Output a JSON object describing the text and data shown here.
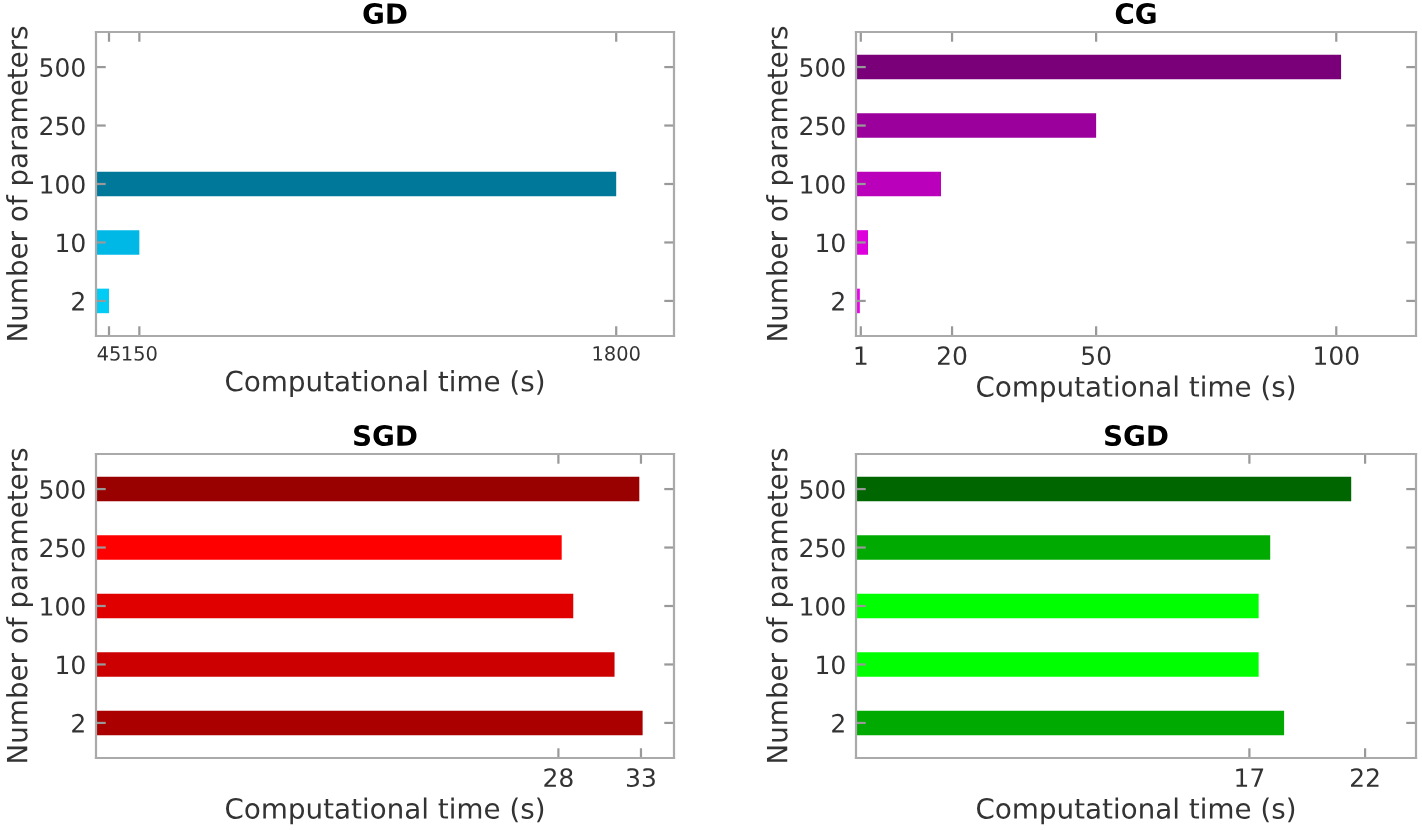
{
  "chart_data": [
    {
      "type": "bar",
      "orientation": "horizontal",
      "title": "GD",
      "xlabel": "Computational time (s)",
      "ylabel": "Number of parameters",
      "categories": [
        "500",
        "250",
        "100",
        "10",
        "2"
      ],
      "values": [
        null,
        null,
        1800,
        150,
        45
      ],
      "colors": [
        "#00789a",
        "#00789a",
        "#00789a",
        "#00b8e6",
        "#00ccf5"
      ],
      "xlim": [
        0,
        2000
      ],
      "xticks": [
        45,
        150,
        1800
      ],
      "grid": false
    },
    {
      "type": "bar",
      "orientation": "horizontal",
      "title": "CG",
      "xlabel": "Computational time (s)",
      "ylabel": "Number of parameters",
      "categories": [
        "500",
        "250",
        "100",
        "10",
        "2"
      ],
      "values": [
        101,
        50,
        17.7,
        2.5,
        0.8
      ],
      "colors": [
        "#7a007a",
        "#9c009c",
        "#bb00bb",
        "#dd00dd",
        "#ee00ee"
      ],
      "xlim": [
        0,
        116.6
      ],
      "xticks": [
        1,
        20,
        50,
        100
      ],
      "grid": false
    },
    {
      "type": "bar",
      "orientation": "horizontal",
      "title": "SGD",
      "xlabel": "Computational time (s)",
      "ylabel": "Number of parameters",
      "categories": [
        "500",
        "250",
        "100",
        "10",
        "2"
      ],
      "values": [
        32.9,
        28.2,
        28.9,
        31.4,
        33.1
      ],
      "colors": [
        "#990000",
        "#ff0000",
        "#e00000",
        "#cc0000",
        "#aa0000"
      ],
      "xlim": [
        0,
        35
      ],
      "xticks": [
        28,
        33
      ],
      "grid": false
    },
    {
      "type": "bar",
      "orientation": "horizontal",
      "title": "SGD",
      "xlabel": "Computational time (s)",
      "ylabel": "Number of parameters",
      "categories": [
        "500",
        "250",
        "100",
        "10",
        "2"
      ],
      "values": [
        21.4,
        17.9,
        17.4,
        17.4,
        18.5
      ],
      "colors": [
        "#006600",
        "#00aa00",
        "#00ff00",
        "#00ff00",
        "#00aa00"
      ],
      "xlim": [
        0,
        24.2
      ],
      "xticks": [
        17,
        22
      ],
      "grid": false
    }
  ]
}
